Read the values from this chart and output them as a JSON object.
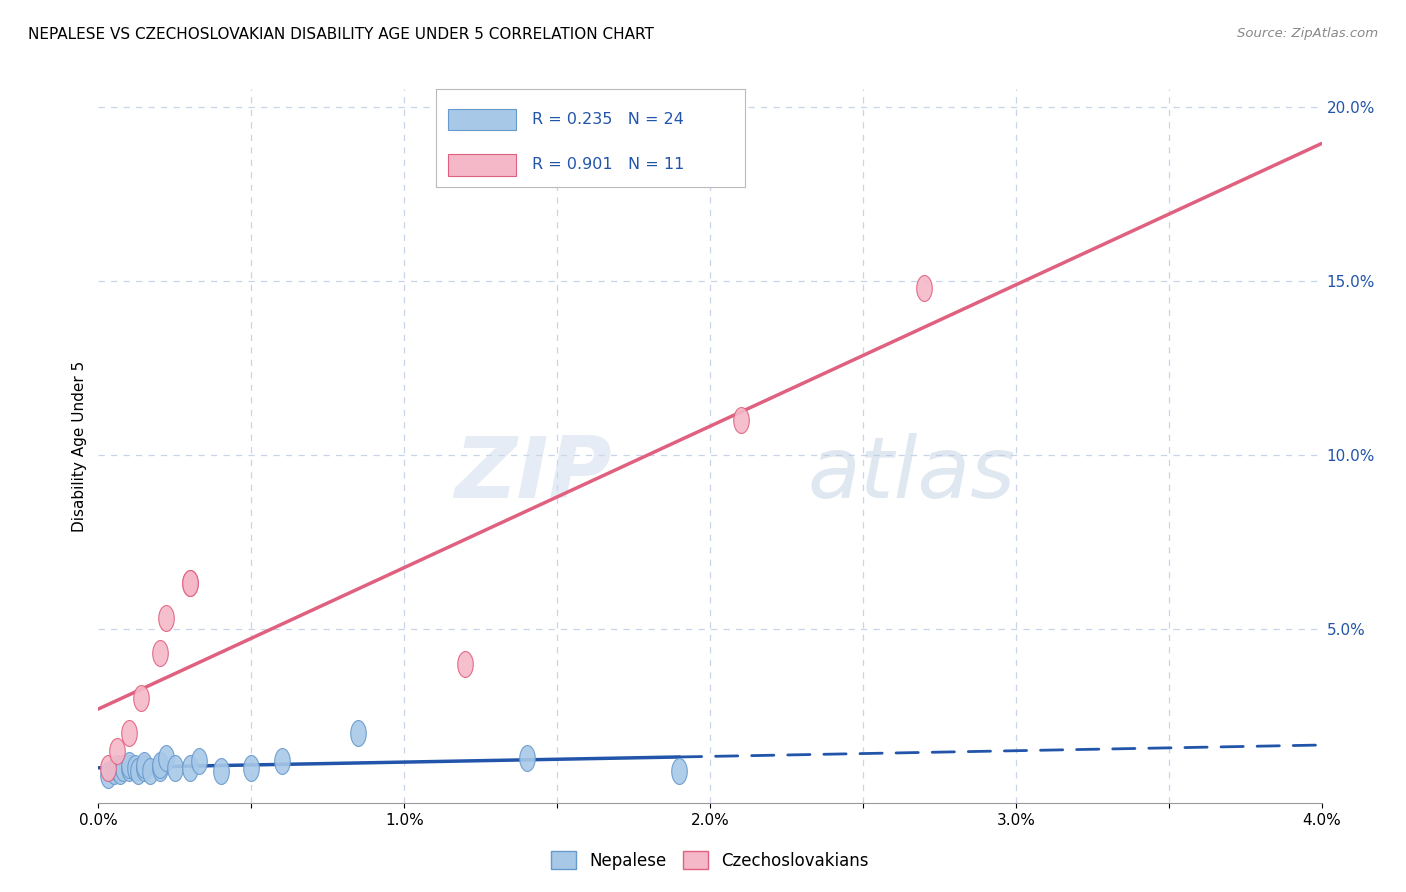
{
  "title": "NEPALESE VS CZECHOSLOVAKIAN DISABILITY AGE UNDER 5 CORRELATION CHART",
  "source": "Source: ZipAtlas.com",
  "ylabel": "Disability Age Under 5",
  "x_min": 0.0,
  "x_max": 0.04,
  "y_min": 0.0,
  "y_max": 0.205,
  "x_tick_positions": [
    0.0,
    0.005,
    0.01,
    0.015,
    0.02,
    0.025,
    0.03,
    0.035,
    0.04
  ],
  "x_tick_labels": [
    "0.0%",
    "",
    "1.0%",
    "",
    "2.0%",
    "",
    "3.0%",
    "",
    "4.0%"
  ],
  "y_tick_positions": [
    0.0,
    0.05,
    0.1,
    0.15,
    0.2
  ],
  "y_tick_labels": [
    "",
    "5.0%",
    "10.0%",
    "15.0%",
    "20.0%"
  ],
  "nepalese_color": "#a8c8e8",
  "nepalese_edge_color": "#6699cc",
  "czechoslovakian_color": "#f4b8c8",
  "czechoslovakian_edge_color": "#e06080",
  "nepalese_line_color": "#2255aa",
  "czechoslovakian_line_color": "#e06080",
  "R_nepalese": 0.235,
  "N_nepalese": 24,
  "R_czechoslovakian": 0.901,
  "N_czechoslovakian": 11,
  "nepalese_x": [
    0.0003,
    0.0005,
    0.0006,
    0.0007,
    0.0008,
    0.001,
    0.001,
    0.0012,
    0.0013,
    0.0015,
    0.0015,
    0.0017,
    0.002,
    0.002,
    0.0022,
    0.0025,
    0.003,
    0.0033,
    0.004,
    0.005,
    0.006,
    0.0085,
    0.014,
    0.019
  ],
  "nepalese_y": [
    0.008,
    0.009,
    0.01,
    0.009,
    0.01,
    0.01,
    0.011,
    0.01,
    0.009,
    0.01,
    0.011,
    0.009,
    0.01,
    0.011,
    0.013,
    0.01,
    0.01,
    0.012,
    0.009,
    0.01,
    0.012,
    0.02,
    0.013,
    0.009
  ],
  "czechoslovakian_x": [
    0.0003,
    0.0006,
    0.001,
    0.0014,
    0.002,
    0.0022,
    0.003,
    0.003,
    0.012,
    0.021,
    0.027
  ],
  "czechoslovakian_y": [
    0.01,
    0.015,
    0.02,
    0.03,
    0.043,
    0.053,
    0.063,
    0.063,
    0.04,
    0.11,
    0.148
  ],
  "watermark_zip": "ZIP",
  "watermark_atlas": "atlas",
  "background_color": "#ffffff",
  "grid_color": "#c8d4e8",
  "title_fontsize": 11,
  "axis_label_fontsize": 11,
  "tick_fontsize": 11,
  "legend_fontsize": 12,
  "source_color": "#888888"
}
